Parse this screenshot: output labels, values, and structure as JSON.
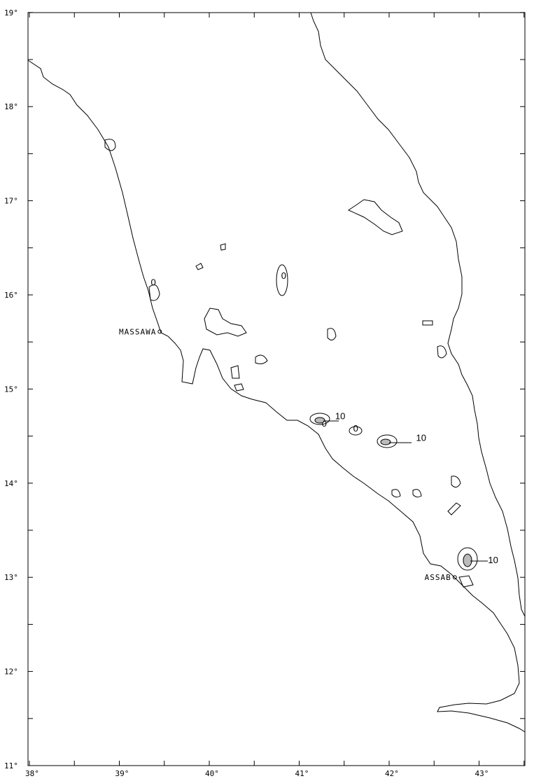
{
  "map": {
    "lon_labels": [
      "38°",
      "39°",
      "40°",
      "41°",
      "42°",
      "43°"
    ],
    "lat_labels": [
      "19°",
      "18°",
      "17°",
      "16°",
      "15°",
      "14°",
      "13°",
      "12°",
      "11°"
    ],
    "places": [
      {
        "name": "MASSAWA",
        "lon": 39.45,
        "lat": 15.61
      },
      {
        "name": "ASSAB",
        "lon": 42.73,
        "lat": 13.0
      }
    ],
    "contour_labels": [
      {
        "text": "10",
        "lon": 41.4,
        "lat": 14.68
      },
      {
        "text": "10",
        "lon": 42.3,
        "lat": 14.45
      },
      {
        "text": "10",
        "lon": 43.1,
        "lat": 13.15
      },
      {
        "text": "0",
        "lon": 41.25,
        "lat": 14.6
      },
      {
        "text": "0",
        "lon": 41.6,
        "lat": 14.55
      },
      {
        "text": "0",
        "lon": 40.8,
        "lat": 16.17
      },
      {
        "text": "0",
        "lon": 39.35,
        "lat": 16.1
      }
    ],
    "contour_interval": "10",
    "shading": "hatched above 10"
  }
}
